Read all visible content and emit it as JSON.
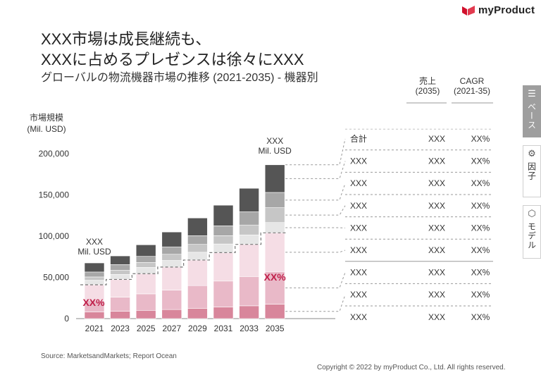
{
  "brand": {
    "name": "myProduct"
  },
  "title_line1": "XXX市場は成長継続も、",
  "title_line2": "XXXに占めるプレゼンスは徐々にXXX",
  "subtitle": "グローバルの物流機器市場の推移 (2021-2035) - 機器別",
  "table_header": {
    "sales_label": "売上",
    "sales_period": "(2035)",
    "cagr_label": "CAGR",
    "cagr_period": "(2021-35)"
  },
  "side_tabs": [
    {
      "label": "ベース",
      "icon": "layers-icon",
      "active": true
    },
    {
      "label": "因子",
      "icon": "factor-icon",
      "active": false
    },
    {
      "label": "モデル",
      "icon": "cube-icon",
      "active": false
    }
  ],
  "chart_data": {
    "type": "bar",
    "stacked": true,
    "ylabel": "市場規模\n(Mil. USD)",
    "ylim": [
      0,
      220000
    ],
    "yticks": [
      "0",
      "50,000",
      "100,000",
      "150,000",
      "200,000"
    ],
    "ytick_values": [
      0,
      50000,
      100000,
      150000,
      200000
    ],
    "categories": [
      "2021",
      "2023",
      "2025",
      "2027",
      "2029",
      "2031",
      "2033",
      "2035"
    ],
    "series": [
      {
        "color": "#d8869b",
        "values": [
          8000,
          9000,
          10000,
          11000,
          12500,
          14000,
          15500,
          17500
        ]
      },
      {
        "color": "#e9b9c8",
        "values": [
          14000,
          17000,
          20000,
          23500,
          27500,
          31500,
          35500,
          39500
        ]
      },
      {
        "color": "#f5dde5",
        "values": [
          19000,
          21500,
          24500,
          28000,
          31000,
          34500,
          39000,
          47000
        ]
      },
      {
        "color": "#e6e6e6",
        "values": [
          5500,
          6000,
          7500,
          8000,
          9500,
          10500,
          11500,
          12500
        ]
      },
      {
        "color": "#c6c6c6",
        "values": [
          4000,
          5000,
          6000,
          7500,
          9500,
          10000,
          12000,
          18000
        ]
      },
      {
        "color": "#a7a7a7",
        "values": [
          6000,
          7000,
          7500,
          9000,
          10500,
          12000,
          16000,
          18500
        ]
      },
      {
        "color": "#555555",
        "values": [
          11000,
          10500,
          14000,
          18000,
          21500,
          25000,
          28500,
          33500
        ]
      }
    ],
    "annotations": {
      "first_total": "XXX\nMil. USD",
      "last_total": "XXX\nMil. USD",
      "share_first": "XX%",
      "share_last": "XX%"
    },
    "table_rows": [
      {
        "name": "合計",
        "sales": "XXX",
        "cagr": "XX%"
      },
      {
        "name": "XXX",
        "sales": "XXX",
        "cagr": "XX%"
      },
      {
        "name": "XXX",
        "sales": "XXX",
        "cagr": "XX%"
      },
      {
        "name": "XXX",
        "sales": "XXX",
        "cagr": "XX%"
      },
      {
        "name": "XXX",
        "sales": "XXX",
        "cagr": "XX%"
      },
      {
        "name": "XXX",
        "sales": "XXX",
        "cagr": "XX%"
      },
      {
        "name": "XXX",
        "sales": "XXX",
        "cagr": "XX%"
      },
      {
        "name": "XXX",
        "sales": "XXX",
        "cagr": "XX%"
      },
      {
        "name": "XXX",
        "sales": "XXX",
        "cagr": "XX%"
      }
    ]
  },
  "source": "Source: MarketsandMarkets; Report Ocean",
  "copyright": "Copyright © 2022 by myProduct Co., Ltd.  All rights reserved."
}
